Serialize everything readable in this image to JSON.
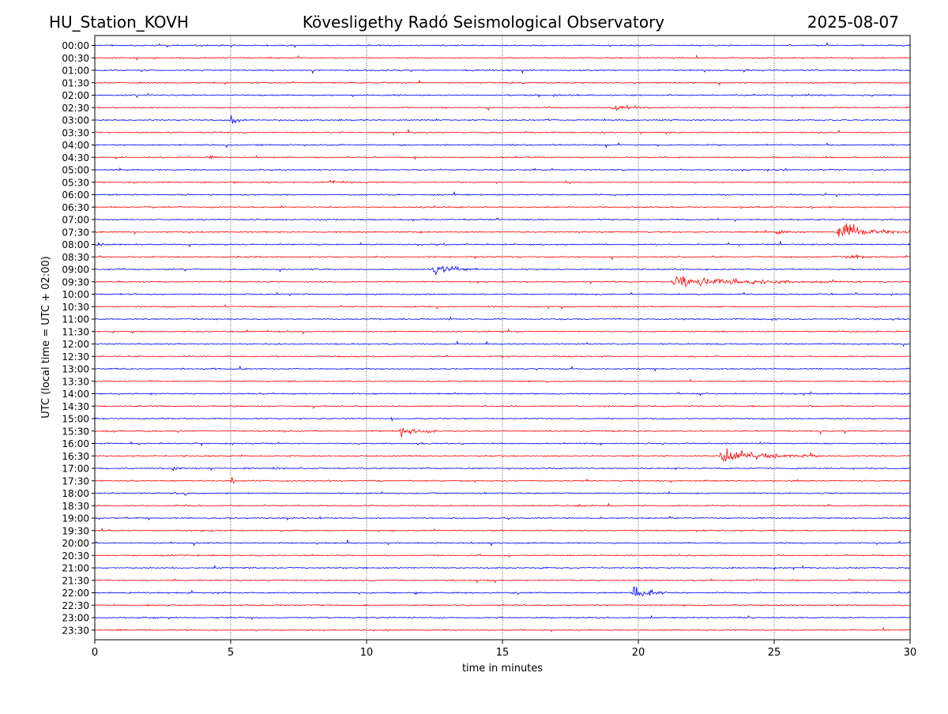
{
  "header": {
    "station": "HU_Station_KOVH",
    "observatory": "Kövesligethy Radó Seismological Observatory",
    "date": "2025-08-07"
  },
  "chart_data": {
    "type": "line",
    "title": "Kövesligethy Radó Seismological Observatory",
    "xlabel": "time in minutes",
    "ylabel": "UTC (local time = UTC + 02:00)",
    "xlim": [
      0,
      30
    ],
    "x_ticks": [
      0,
      5,
      10,
      15,
      20,
      25,
      30
    ],
    "x_tick_labels": [
      "0",
      "5",
      "10",
      "15",
      "20",
      "25",
      "30"
    ],
    "grid": "vertical dotted lines at 5, 10, 15, 20, 25 minutes",
    "row_labels": [
      "00:00",
      "00:30",
      "01:00",
      "01:30",
      "02:00",
      "02:30",
      "03:00",
      "03:30",
      "04:00",
      "04:30",
      "05:00",
      "05:30",
      "06:00",
      "06:30",
      "07:00",
      "07:30",
      "08:00",
      "08:30",
      "09:00",
      "09:30",
      "10:00",
      "10:30",
      "11:00",
      "11:30",
      "12:00",
      "12:30",
      "13:00",
      "13:30",
      "14:00",
      "14:30",
      "15:00",
      "15:30",
      "16:00",
      "16:30",
      "17:00",
      "17:30",
      "18:00",
      "18:30",
      "19:00",
      "19:30",
      "20:00",
      "20:30",
      "21:00",
      "21:30",
      "22:00",
      "22:30",
      "23:00",
      "23:30"
    ],
    "trace_colors": [
      "#0000ff",
      "#ff0000"
    ],
    "events": [
      {
        "row": "02:30",
        "start": 19.0,
        "duration": 1.4,
        "amp": 0.45
      },
      {
        "row": "03:00",
        "start": 4.95,
        "duration": 0.6,
        "amp": 0.9
      },
      {
        "row": "04:30",
        "start": 4.2,
        "duration": 0.4,
        "amp": 0.35
      },
      {
        "row": "05:30",
        "start": 8.6,
        "duration": 1.0,
        "amp": 0.25
      },
      {
        "row": "07:30",
        "start": 25.0,
        "duration": 1.2,
        "amp": 0.35
      },
      {
        "row": "07:30",
        "start": 27.3,
        "duration": 2.7,
        "amp": 1.4
      },
      {
        "row": "08:00",
        "start": 0.0,
        "duration": 0.9,
        "amp": 0.3
      },
      {
        "row": "08:00",
        "start": 12.5,
        "duration": 0.5,
        "amp": 0.3
      },
      {
        "row": "08:30",
        "start": 27.6,
        "duration": 1.0,
        "amp": 0.35
      },
      {
        "row": "09:00",
        "start": 12.4,
        "duration": 2.2,
        "amp": 0.8
      },
      {
        "row": "09:30",
        "start": 21.2,
        "duration": 7.0,
        "amp": 0.8
      },
      {
        "row": "15:30",
        "start": 11.2,
        "duration": 1.6,
        "amp": 0.8
      },
      {
        "row": "16:30",
        "start": 22.95,
        "duration": 3.9,
        "amp": 1.1
      },
      {
        "row": "17:00",
        "start": 2.8,
        "duration": 0.7,
        "amp": 0.3
      },
      {
        "row": "17:00",
        "start": 6.5,
        "duration": 0.6,
        "amp": 0.2
      },
      {
        "row": "17:30",
        "start": 4.97,
        "duration": 0.25,
        "amp": 0.7
      },
      {
        "row": "18:00",
        "start": 3.25,
        "duration": 0.15,
        "amp": 0.5
      },
      {
        "row": "18:30",
        "start": 17.6,
        "duration": 0.9,
        "amp": 0.3
      },
      {
        "row": "22:00",
        "start": 19.75,
        "duration": 1.4,
        "amp": 1.3
      }
    ]
  }
}
